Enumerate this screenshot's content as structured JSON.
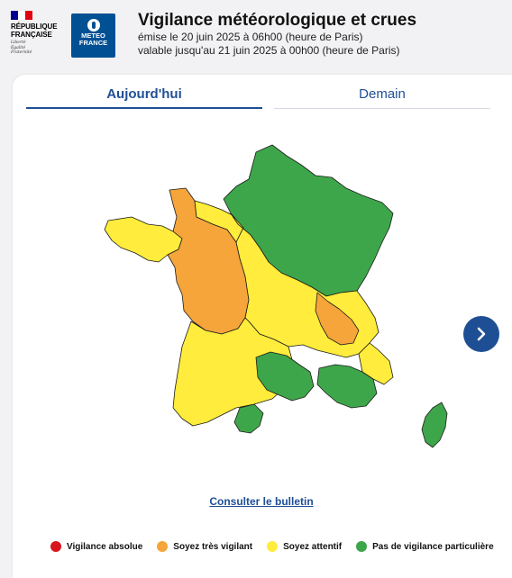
{
  "header": {
    "rf_title": "RÉPUBLIQUE\nFRANÇAISE",
    "rf_motto": "Liberté\nÉgalité\nFraternité",
    "mf_text": "METEO\nFRANCE",
    "title": "Vigilance météorologique et crues",
    "issued": "émise le 20 juin 2025 à 06h00 (heure de Paris)",
    "valid": "valable jusqu'au 21 juin 2025 à 00h00 (heure de Paris)"
  },
  "tabs": [
    {
      "label": "Aujourd'hui",
      "active": true
    },
    {
      "label": "Demain",
      "active": false
    }
  ],
  "colors": {
    "green": "#3ea64a",
    "yellow": "#ffec3c",
    "orange": "#f5a53a",
    "red": "#d9151c",
    "flag_blue": "#000091",
    "flag_red": "#e1000f",
    "accent": "#1e4f95"
  },
  "map": {
    "region_vigilance": {
      "northeast": "green",
      "brittany_west": "yellow",
      "west_center": "orange",
      "southwest": "yellow",
      "center_east": "yellow",
      "massif_central": "green",
      "alps_north": "orange",
      "southeast": "green",
      "corsica": "green"
    }
  },
  "next_icon": "chevron-right-icon",
  "bulletin_link": "Consulter le bulletin",
  "legend": [
    {
      "label": "Vigilance absolue",
      "color": "#d9151c"
    },
    {
      "label": "Soyez très vigilant",
      "color": "#f5a53a"
    },
    {
      "label": "Soyez attentif",
      "color": "#ffec3c"
    },
    {
      "label": "Pas de vigilance particulière",
      "color": "#3ea64a"
    }
  ]
}
